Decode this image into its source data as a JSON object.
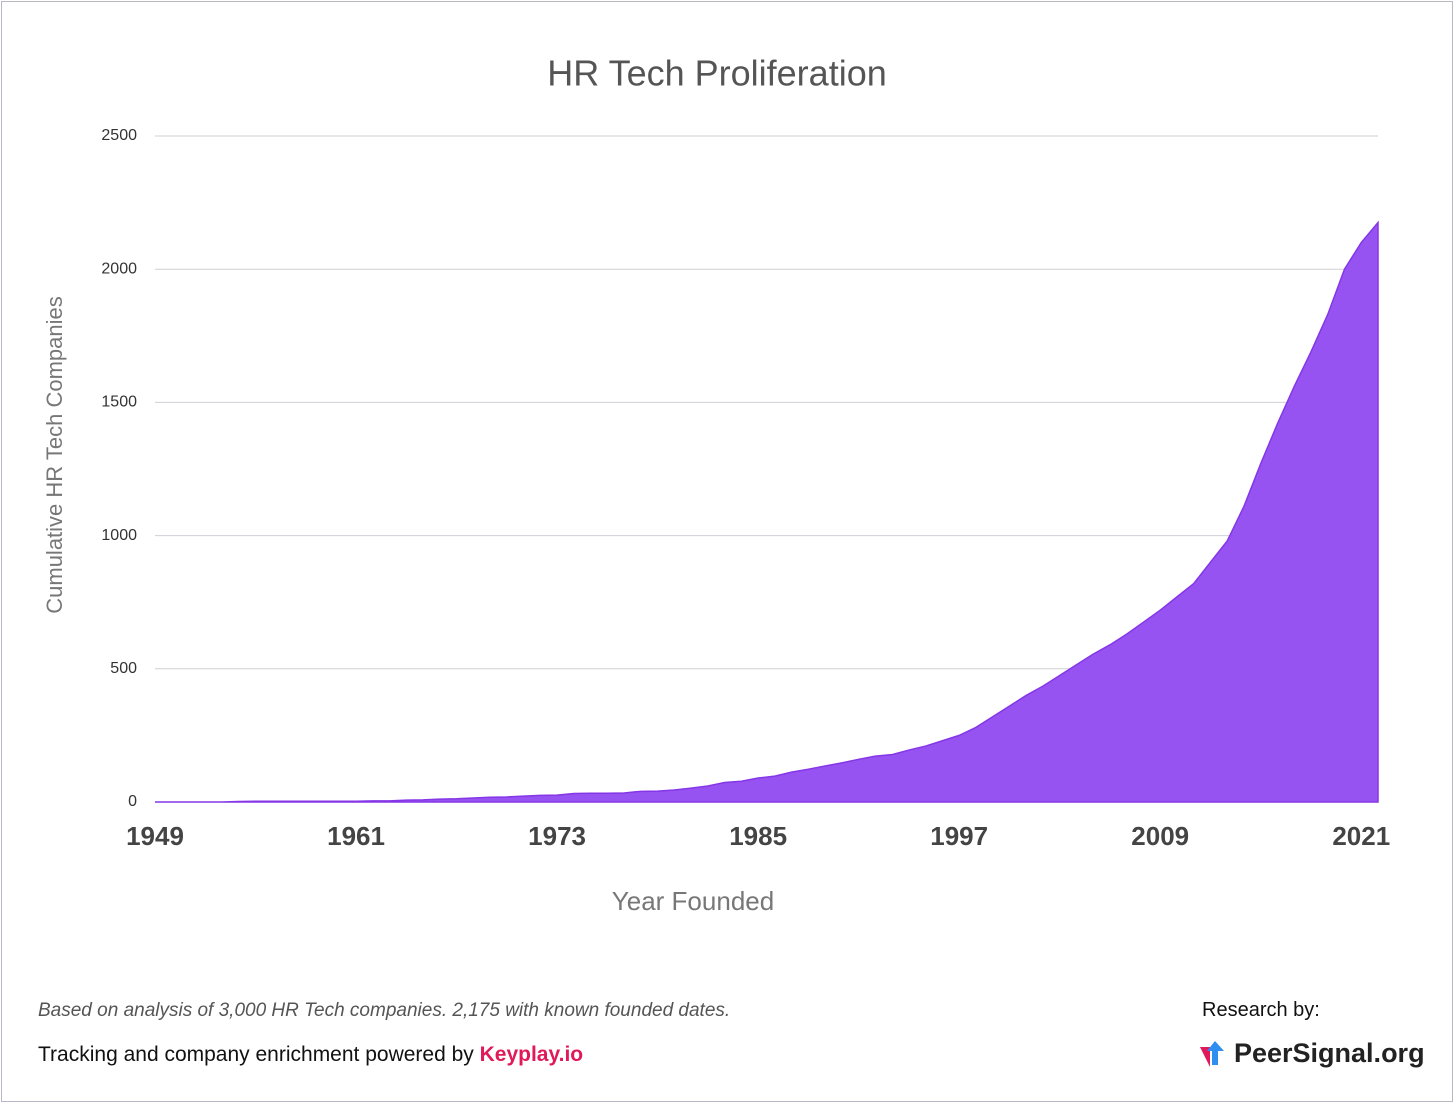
{
  "chart_data": {
    "type": "area",
    "title": "HR Tech Proliferation",
    "x_label": "Year Founded",
    "y_label": "Cumulative HR Tech Companies",
    "x": [
      1949,
      1950,
      1951,
      1952,
      1953,
      1954,
      1955,
      1956,
      1957,
      1958,
      1959,
      1960,
      1961,
      1962,
      1963,
      1964,
      1965,
      1966,
      1967,
      1968,
      1969,
      1970,
      1971,
      1972,
      1973,
      1974,
      1975,
      1976,
      1977,
      1978,
      1979,
      1980,
      1981,
      1982,
      1983,
      1984,
      1985,
      1986,
      1987,
      1988,
      1989,
      1990,
      1991,
      1992,
      1993,
      1994,
      1995,
      1996,
      1997,
      1998,
      1999,
      2000,
      2001,
      2002,
      2003,
      2004,
      2005,
      2006,
      2007,
      2008,
      2009,
      2010,
      2011,
      2012,
      2013,
      2014,
      2015,
      2016,
      2017,
      2018,
      2019,
      2020,
      2021,
      2022
    ],
    "values": [
      0,
      0,
      0,
      0,
      0,
      2,
      3,
      3,
      3,
      3,
      3,
      3,
      3,
      4,
      4,
      7,
      8,
      11,
      12,
      15,
      18,
      19,
      22,
      25,
      26,
      32,
      33,
      33,
      34,
      40,
      41,
      45,
      52,
      60,
      73,
      78,
      90,
      97,
      112,
      123,
      135,
      147,
      160,
      172,
      178,
      195,
      210,
      230,
      250,
      280,
      320,
      360,
      400,
      435,
      475,
      515,
      555,
      590,
      630,
      675,
      720,
      770,
      820,
      900,
      980,
      1110,
      1270,
      1420,
      1560,
      1690,
      1830,
      2000,
      2100,
      2175
    ],
    "color": "#9450f2",
    "xlim": [
      1949,
      2022
    ],
    "xticks": [
      1949,
      1961,
      1973,
      1985,
      1997,
      2009,
      2021
    ],
    "ylim": [
      0,
      2500
    ],
    "yticks": [
      0,
      500,
      1000,
      1500,
      2000,
      2500
    ],
    "grid": true
  },
  "footer": {
    "note": "Based on analysis of 3,000 HR Tech companies. 2,175 with known founded dates.",
    "powered_by": "Tracking and company enrichment powered by",
    "powered_link": "Keyplay.io",
    "research_by": "Research by:",
    "research_brand": "PeerSignal.org"
  }
}
